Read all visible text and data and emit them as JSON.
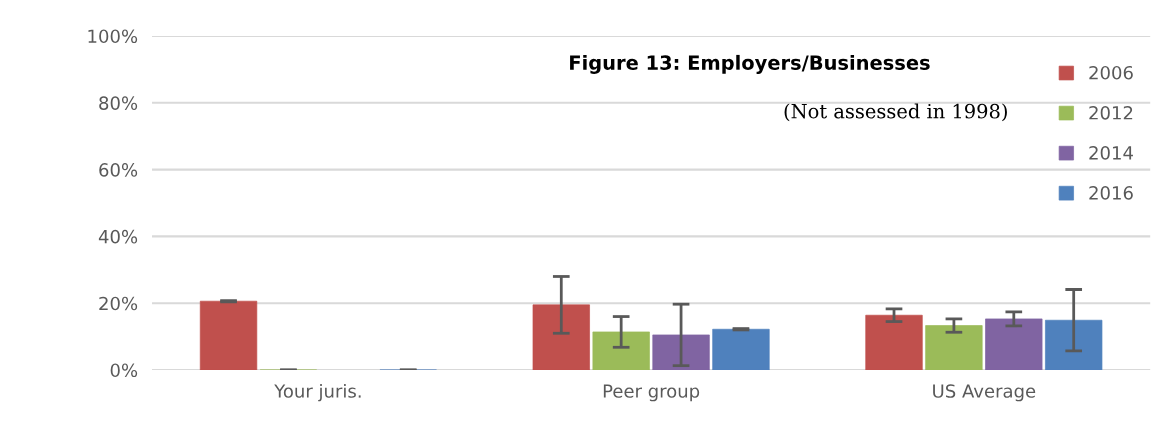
{
  "chart_data": {
    "type": "bar",
    "title": "Figure 13: Employers/Businesses",
    "subtitle": "(Not assessed in 1998)",
    "categories": [
      "Your juris.",
      "Peer group",
      "US Average"
    ],
    "series": [
      {
        "name": "2006",
        "color": "#c0504d",
        "values": [
          20.6,
          19.5,
          16.4
        ],
        "errors": [
          0.2,
          8.5,
          1.9
        ]
      },
      {
        "name": "2012",
        "color": "#9bbb59",
        "values": [
          0,
          11.4,
          13.3
        ],
        "errors": [
          0,
          4.6,
          2.0
        ]
      },
      {
        "name": "2014",
        "color": "#8064a2",
        "values": [
          null,
          10.5,
          15.3
        ],
        "errors": [
          null,
          9.2,
          2.1
        ]
      },
      {
        "name": "2016",
        "color": "#4f81bd",
        "values": [
          0,
          12.2,
          14.9
        ],
        "errors": [
          0,
          0.2,
          9.2
        ]
      }
    ],
    "ylim": [
      0,
      100
    ],
    "yticks": [
      {
        "value": 0,
        "label": "0%"
      },
      {
        "value": 20,
        "label": "20%"
      },
      {
        "value": 40,
        "label": "40%"
      },
      {
        "value": 60,
        "label": "60%"
      },
      {
        "value": 80,
        "label": "80%"
      },
      {
        "value": 100,
        "label": "100%"
      }
    ],
    "grid": "y",
    "legend": "top right"
  }
}
